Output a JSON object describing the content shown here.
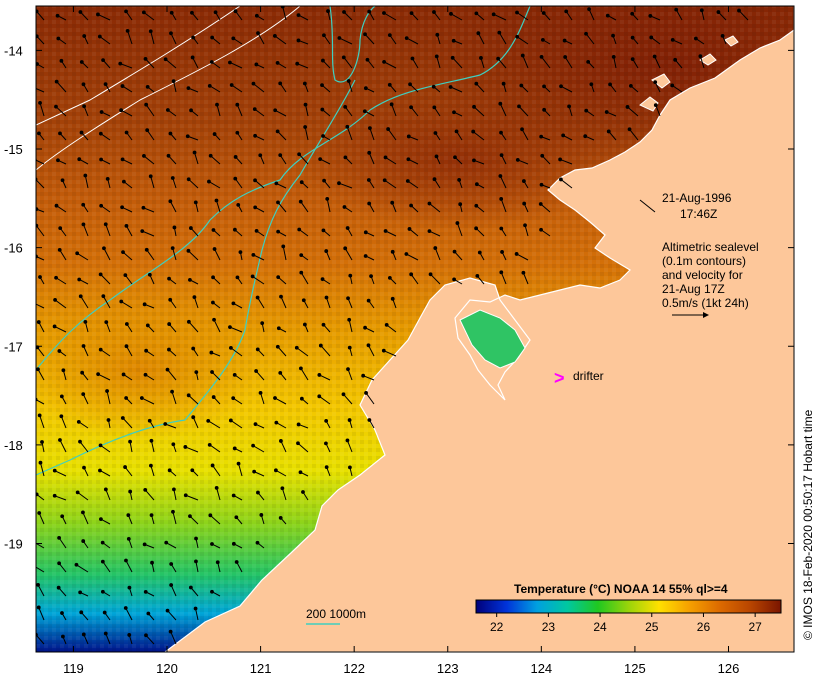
{
  "map": {
    "region": "North-west Australian shelf",
    "longitude_ticks": [
      "119",
      "120",
      "121",
      "122",
      "123",
      "124",
      "125",
      "126"
    ],
    "latitude_ticks": [
      "-14",
      "-15",
      "-16",
      "-17",
      "-18",
      "-19"
    ],
    "lon_range": [
      118.6,
      126.7
    ],
    "lat_range": [
      -13.55,
      -20.1
    ]
  },
  "annotations": {
    "date": "21-Aug-1996",
    "time": "17:46Z",
    "altimetry_line1": "Altimetric sealevel",
    "altimetry_line2": "(0.1m contours)",
    "altimetry_line3": "and velocity for",
    "altimetry_line4": "21-Aug 17Z",
    "altimetry_line5": "0.5m/s (1kt 24h)",
    "drifter_symbol": ">",
    "drifter_label": "drifter",
    "bathymetry_legend": "200  1000m"
  },
  "colorbar": {
    "title": "Temperature (°C) NOAA 14 55% ql>=4",
    "tick_labels": [
      "22",
      "23",
      "24",
      "25",
      "26",
      "27"
    ],
    "range": [
      21.6,
      27.5
    ],
    "colors": [
      "#00007a",
      "#0033d9",
      "#00a0e0",
      "#00c8a0",
      "#20c820",
      "#9ad40a",
      "#ffe000",
      "#f5a000",
      "#dc6a00",
      "#b84500",
      "#7a1500"
    ]
  },
  "credit": "© IMOS 18-Feb-2020 00:50:17 Hobart time",
  "colors": {
    "land": "#fdc79a",
    "drifter": "#ff00ff",
    "contour": "#3fcfc0"
  }
}
